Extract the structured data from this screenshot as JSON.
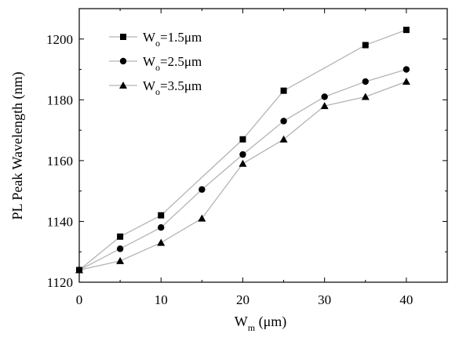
{
  "chart_data": {
    "type": "line",
    "title": "",
    "xlabel": {
      "main": "W",
      "sub": "m",
      "rest": " (μm)"
    },
    "ylabel": "PL Peak Wavelength (nm)",
    "xlim": [
      0,
      45
    ],
    "ylim": [
      1120,
      1210
    ],
    "xticks": [
      0,
      10,
      20,
      30,
      40
    ],
    "yticks": [
      1120,
      1140,
      1160,
      1180,
      1200
    ],
    "grid": false,
    "legend_position": "top-left",
    "line_color": "#b4b4b4",
    "marker_color": "#000000",
    "series": [
      {
        "name": {
          "main": "W",
          "sub": "o",
          "rest": "=1.5μm"
        },
        "marker": "square",
        "x": [
          0,
          5,
          10,
          20,
          25,
          35,
          40
        ],
        "y": [
          1124,
          1135,
          1142,
          1167,
          1183,
          1198,
          1203
        ]
      },
      {
        "name": {
          "main": "W",
          "sub": "o",
          "rest": "=2.5μm"
        },
        "marker": "circle",
        "x": [
          0,
          5,
          10,
          15,
          20,
          25,
          30,
          35,
          40
        ],
        "y": [
          1124,
          1131,
          1138,
          1150.5,
          1162,
          1173,
          1181,
          1186,
          1190
        ]
      },
      {
        "name": {
          "main": "W",
          "sub": "o",
          "rest": "=3.5μm"
        },
        "marker": "triangle",
        "x": [
          0,
          5,
          10,
          15,
          20,
          25,
          30,
          35,
          40
        ],
        "y": [
          1124,
          1127,
          1133,
          1141,
          1159,
          1167,
          1178,
          1181,
          1186
        ]
      }
    ]
  }
}
